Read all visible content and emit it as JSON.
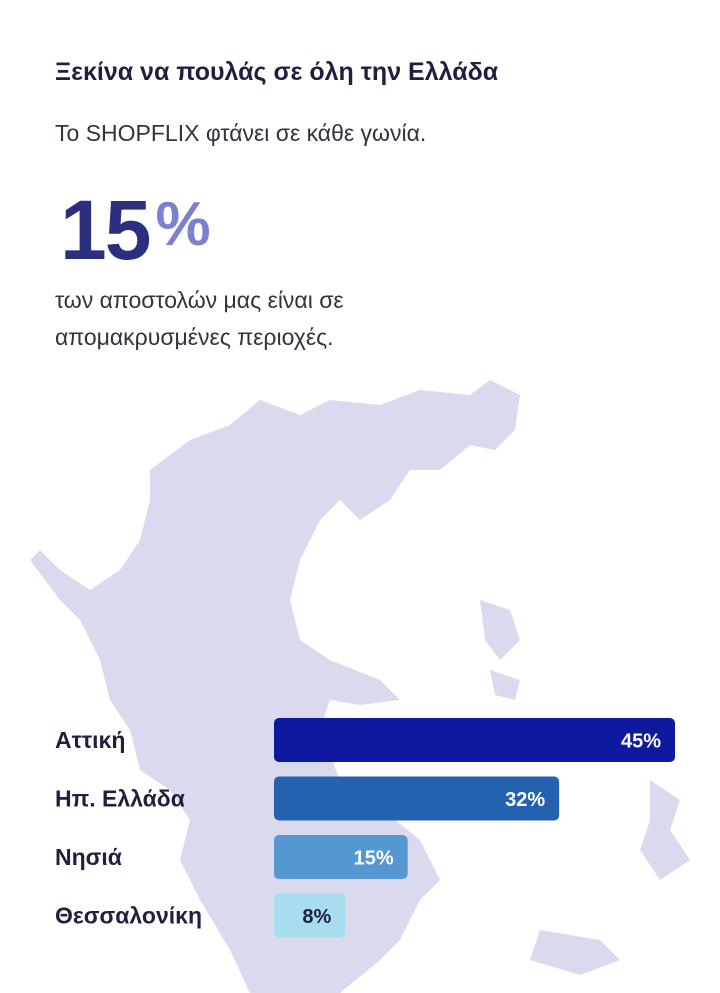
{
  "header": {
    "title": "Ξεκίνα να πουλάς σε όλη την Ελλάδα",
    "subtitle": "Το SHOPFLIX φτάνει σε κάθε γωνία."
  },
  "stat": {
    "number": "15",
    "unit": "%",
    "description": [
      "των αποστολών μας είναι σε",
      "απομακρυσμένες περιοχές."
    ]
  },
  "chart_data": {
    "type": "hbar",
    "categories": [
      "Αττική",
      "Ηπ. Ελλάδα",
      "Νησιά",
      "Θεσσαλονίκη"
    ],
    "values": [
      45,
      32,
      15,
      8
    ],
    "value_labels": [
      "45%",
      "32%",
      "15%",
      "8%"
    ],
    "colors": [
      "#0e199f",
      "#2462b0",
      "#5497d1",
      "#a8dcef"
    ],
    "label_colors": [
      "#ffffff",
      "#ffffff",
      "#ffffff",
      "#1f2040"
    ],
    "xlim": [
      0,
      45
    ]
  }
}
